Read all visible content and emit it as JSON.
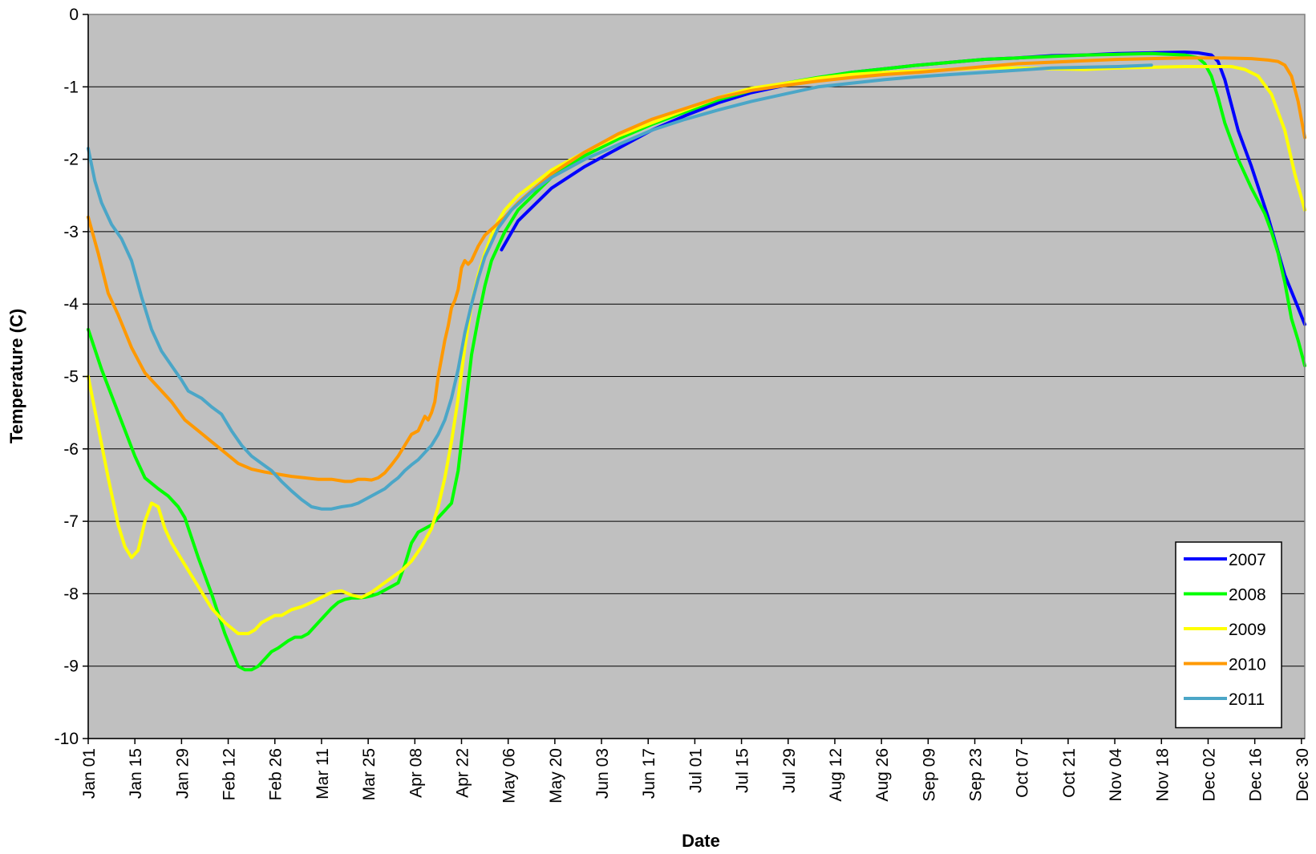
{
  "chart_data": {
    "type": "line",
    "title": "",
    "xlabel": "Date",
    "ylabel": "Temperature (C)",
    "xlim": [
      1,
      366
    ],
    "ylim": [
      -10,
      0
    ],
    "y_ticks": [
      0,
      -1,
      -2,
      -3,
      -4,
      -5,
      -6,
      -7,
      -8,
      -9,
      -10
    ],
    "y_tick_labels": [
      "0",
      "-1",
      "-2",
      "-3",
      "-4",
      "-5",
      "-6",
      "-7",
      "-8",
      "-9",
      "-10"
    ],
    "x_ticks": [
      1,
      15,
      29,
      43,
      57,
      71,
      85,
      99,
      113,
      127,
      141,
      155,
      169,
      183,
      197,
      211,
      225,
      239,
      253,
      267,
      281,
      295,
      309,
      323,
      337,
      351,
      365
    ],
    "x_tick_labels": [
      "Jan 01",
      "Jan 15",
      "Jan 29",
      "Feb 12",
      "Feb 26",
      "Mar 11",
      "Mar 25",
      "Apr 08",
      "Apr 22",
      "May 06",
      "May 20",
      "Jun 03",
      "Jun 17",
      "Jul 01",
      "Jul 15",
      "Jul 29",
      "Aug 12",
      "Aug 26",
      "Sep 09",
      "Sep 23",
      "Oct 07",
      "Oct 21",
      "Nov 04",
      "Nov 18",
      "Dec 02",
      "Dec 16",
      "Dec 30"
    ],
    "grid": "horizontal",
    "plot_background": "#c0c0c0",
    "legend_position": "bottom-right",
    "series": [
      {
        "name": "2007",
        "color": "#0000ff",
        "x": [
          125,
          130,
          140,
          150,
          160,
          170,
          180,
          190,
          200,
          210,
          220,
          230,
          240,
          250,
          260,
          270,
          280,
          290,
          300,
          310,
          320,
          330,
          334,
          338,
          340,
          342,
          344,
          346,
          350,
          355,
          360,
          364,
          366
        ],
        "y": [
          -3.25,
          -2.85,
          -2.4,
          -2.1,
          -1.85,
          -1.6,
          -1.4,
          -1.22,
          -1.08,
          -0.98,
          -0.88,
          -0.8,
          -0.75,
          -0.7,
          -0.66,
          -0.62,
          -0.6,
          -0.57,
          -0.56,
          -0.54,
          -0.53,
          -0.52,
          -0.53,
          -0.56,
          -0.65,
          -0.9,
          -1.25,
          -1.6,
          -2.1,
          -2.8,
          -3.6,
          -4.05,
          -4.28
        ]
      },
      {
        "name": "2008",
        "color": "#00ff00",
        "x": [
          1,
          5,
          10,
          15,
          18,
          22,
          25,
          28,
          30,
          34,
          38,
          42,
          46,
          48,
          50,
          52,
          54,
          56,
          58,
          61,
          63,
          65,
          67,
          70,
          72,
          74,
          76,
          78,
          80,
          82,
          84,
          86,
          88,
          90,
          92,
          94,
          96,
          98,
          100,
          102,
          104,
          106,
          108,
          109,
          110,
          112,
          114,
          116,
          118,
          120,
          122,
          126,
          130,
          140,
          150,
          160,
          170,
          180,
          190,
          200,
          210,
          220,
          230,
          240,
          250,
          260,
          270,
          280,
          290,
          300,
          310,
          320,
          330,
          334,
          336,
          338,
          340,
          342,
          346,
          350,
          354,
          356,
          358,
          360,
          362,
          364,
          366
        ],
        "y": [
          -4.35,
          -4.9,
          -5.5,
          -6.1,
          -6.4,
          -6.55,
          -6.65,
          -6.8,
          -6.95,
          -7.5,
          -8.0,
          -8.55,
          -9.0,
          -9.05,
          -9.05,
          -9.0,
          -8.9,
          -8.8,
          -8.75,
          -8.65,
          -8.6,
          -8.6,
          -8.55,
          -8.4,
          -8.3,
          -8.2,
          -8.12,
          -8.08,
          -8.06,
          -8.06,
          -8.05,
          -8.03,
          -8.0,
          -7.95,
          -7.9,
          -7.85,
          -7.6,
          -7.3,
          -7.15,
          -7.1,
          -7.05,
          -6.95,
          -6.85,
          -6.8,
          -6.75,
          -6.3,
          -5.5,
          -4.7,
          -4.2,
          -3.75,
          -3.4,
          -3.0,
          -2.7,
          -2.25,
          -1.95,
          -1.72,
          -1.52,
          -1.35,
          -1.18,
          -1.05,
          -0.95,
          -0.87,
          -0.8,
          -0.75,
          -0.7,
          -0.66,
          -0.62,
          -0.6,
          -0.58,
          -0.56,
          -0.55,
          -0.54,
          -0.56,
          -0.6,
          -0.68,
          -0.85,
          -1.15,
          -1.5,
          -2.0,
          -2.4,
          -2.75,
          -3.0,
          -3.3,
          -3.7,
          -4.2,
          -4.5,
          -4.85
        ]
      },
      {
        "name": "2009",
        "color": "#ffff00",
        "x": [
          1,
          4,
          7,
          10,
          12,
          14,
          16,
          18,
          20,
          22,
          24,
          26,
          28,
          30,
          34,
          38,
          42,
          46,
          49,
          51,
          53,
          55,
          57,
          59,
          62,
          65,
          68,
          71,
          74,
          77,
          80,
          83,
          86,
          89,
          92,
          95,
          98,
          101,
          104,
          106,
          108,
          110,
          112,
          114,
          116,
          118,
          120,
          122,
          124,
          126,
          130,
          140,
          150,
          160,
          170,
          180,
          190,
          200,
          210,
          220,
          230,
          240,
          250,
          260,
          270,
          280,
          290,
          300,
          310,
          320,
          330,
          336,
          340,
          344,
          348,
          352,
          356,
          360,
          363,
          366
        ],
        "y": [
          -5.0,
          -5.7,
          -6.4,
          -7.05,
          -7.35,
          -7.5,
          -7.4,
          -7.0,
          -6.75,
          -6.8,
          -7.1,
          -7.3,
          -7.45,
          -7.6,
          -7.9,
          -8.2,
          -8.4,
          -8.55,
          -8.55,
          -8.5,
          -8.4,
          -8.35,
          -8.3,
          -8.3,
          -8.22,
          -8.18,
          -8.12,
          -8.05,
          -7.98,
          -7.96,
          -8.02,
          -8.05,
          -7.98,
          -7.88,
          -7.78,
          -7.68,
          -7.55,
          -7.35,
          -7.1,
          -6.8,
          -6.4,
          -5.9,
          -5.3,
          -4.6,
          -4.0,
          -3.6,
          -3.3,
          -3.05,
          -2.85,
          -2.7,
          -2.5,
          -2.15,
          -1.9,
          -1.68,
          -1.5,
          -1.32,
          -1.15,
          -1.02,
          -0.95,
          -0.88,
          -0.83,
          -0.8,
          -0.78,
          -0.76,
          -0.74,
          -0.74,
          -0.75,
          -0.76,
          -0.74,
          -0.73,
          -0.72,
          -0.72,
          -0.72,
          -0.72,
          -0.76,
          -0.85,
          -1.1,
          -1.6,
          -2.2,
          -2.7
        ]
      },
      {
        "name": "2010",
        "color": "#ff9900",
        "x": [
          1,
          4,
          7,
          10,
          14,
          18,
          22,
          26,
          30,
          34,
          38,
          42,
          46,
          50,
          54,
          58,
          62,
          66,
          70,
          74,
          78,
          80,
          82,
          84,
          86,
          88,
          90,
          92,
          94,
          96,
          98,
          100,
          102,
          103,
          104,
          105,
          106,
          108,
          109,
          110,
          111,
          112,
          113,
          114,
          115,
          116,
          118,
          120,
          126,
          130,
          140,
          150,
          160,
          170,
          180,
          190,
          200,
          210,
          220,
          230,
          240,
          250,
          260,
          270,
          280,
          290,
          300,
          310,
          320,
          330,
          340,
          350,
          355,
          358,
          360,
          362,
          364,
          366
        ],
        "y": [
          -2.8,
          -3.3,
          -3.85,
          -4.15,
          -4.6,
          -4.95,
          -5.15,
          -5.35,
          -5.6,
          -5.75,
          -5.9,
          -6.05,
          -6.2,
          -6.28,
          -6.32,
          -6.35,
          -6.38,
          -6.4,
          -6.42,
          -6.42,
          -6.45,
          -6.45,
          -6.42,
          -6.42,
          -6.43,
          -6.4,
          -6.33,
          -6.22,
          -6.1,
          -5.95,
          -5.8,
          -5.75,
          -5.55,
          -5.6,
          -5.5,
          -5.35,
          -5.0,
          -4.5,
          -4.3,
          -4.05,
          -3.95,
          -3.8,
          -3.5,
          -3.4,
          -3.45,
          -3.4,
          -3.2,
          -3.05,
          -2.8,
          -2.6,
          -2.2,
          -1.9,
          -1.65,
          -1.45,
          -1.3,
          -1.15,
          -1.05,
          -0.98,
          -0.92,
          -0.87,
          -0.83,
          -0.8,
          -0.76,
          -0.72,
          -0.68,
          -0.66,
          -0.64,
          -0.62,
          -0.61,
          -0.6,
          -0.6,
          -0.61,
          -0.63,
          -0.65,
          -0.7,
          -0.85,
          -1.2,
          -1.7
        ]
      },
      {
        "name": "2011",
        "color": "#4ba6c7",
        "x": [
          1,
          3,
          5,
          8,
          11,
          14,
          17,
          20,
          23,
          26,
          29,
          31,
          33,
          35,
          38,
          41,
          44,
          47,
          50,
          53,
          56,
          59,
          62,
          65,
          68,
          71,
          74,
          77,
          80,
          82,
          84,
          86,
          88,
          90,
          92,
          94,
          96,
          98,
          100,
          102,
          104,
          106,
          108,
          110,
          112,
          114,
          116,
          118,
          120,
          124,
          128,
          134,
          140,
          150,
          160,
          170,
          180,
          190,
          200,
          210,
          220,
          230,
          240,
          250,
          260,
          270,
          280,
          290,
          300,
          310,
          320
        ],
        "y": [
          -1.85,
          -2.3,
          -2.6,
          -2.9,
          -3.1,
          -3.4,
          -3.9,
          -4.35,
          -4.65,
          -4.85,
          -5.05,
          -5.2,
          -5.25,
          -5.3,
          -5.42,
          -5.52,
          -5.75,
          -5.95,
          -6.1,
          -6.2,
          -6.3,
          -6.45,
          -6.58,
          -6.7,
          -6.8,
          -6.83,
          -6.83,
          -6.8,
          -6.78,
          -6.75,
          -6.7,
          -6.65,
          -6.6,
          -6.55,
          -6.47,
          -6.4,
          -6.3,
          -6.22,
          -6.15,
          -6.05,
          -5.95,
          -5.8,
          -5.6,
          -5.3,
          -4.9,
          -4.4,
          -4.0,
          -3.65,
          -3.35,
          -2.95,
          -2.7,
          -2.45,
          -2.25,
          -2.0,
          -1.8,
          -1.6,
          -1.45,
          -1.32,
          -1.2,
          -1.1,
          -1.0,
          -0.95,
          -0.9,
          -0.86,
          -0.83,
          -0.8,
          -0.77,
          -0.74,
          -0.73,
          -0.72,
          -0.7
        ]
      }
    ]
  }
}
